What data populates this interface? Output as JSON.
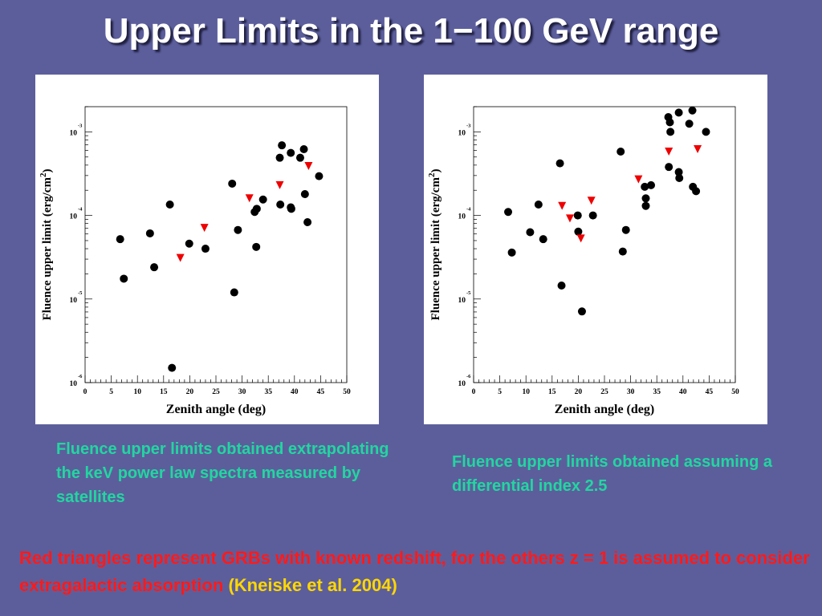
{
  "page": {
    "title": "Upper Limits in the 1−100 GeV range",
    "caption_left": "Fluence upper limits obtained extrapolating the keV power law spectra measured by satellites",
    "caption_right": "Fluence upper limits obtained assuming a differential index 2.5",
    "footnote_main": "Red triangles represent GRBs with known redshift, for the others z = 1 is assumed to consider extragalactic absorption",
    "footnote_ref": "(Kneiske et al. 2004)"
  },
  "colors": {
    "background": "#5c5e9c",
    "caption": "#22d6a0",
    "footnote": "#ff1a1a",
    "reference": "#ffd700",
    "circle_marker": "#000000",
    "triangle_marker": "#ee0000"
  },
  "chart_data": [
    {
      "type": "scatter",
      "xlabel": "Zenith angle (deg)",
      "ylabel": "Fluence upper limit (erg/cm^2)",
      "xlim": [
        0,
        50
      ],
      "ylim": [
        1e-06,
        0.002
      ],
      "yscale": "log",
      "xticks": [
        0,
        5,
        10,
        15,
        20,
        25,
        30,
        35,
        40,
        45,
        50
      ],
      "yticks": [
        {
          "value": 0.001,
          "base": "10",
          "exp": "-3"
        },
        {
          "value": 0.0001,
          "base": "10",
          "exp": "-4"
        },
        {
          "value": 1e-05,
          "base": "10",
          "exp": "-5"
        },
        {
          "value": 1e-06,
          "base": "10",
          "exp": "-6"
        }
      ],
      "series": [
        {
          "marker": "circle",
          "points": [
            {
              "x": 6.7,
              "y": 5.2e-05
            },
            {
              "x": 7.4,
              "y": 1.75e-05
            },
            {
              "x": 12.4,
              "y": 6.1e-05
            },
            {
              "x": 13.2,
              "y": 2.4e-05
            },
            {
              "x": 16.2,
              "y": 0.000135
            },
            {
              "x": 16.6,
              "y": 1.5e-06
            },
            {
              "x": 19.9,
              "y": 4.6e-05
            },
            {
              "x": 23.0,
              "y": 4e-05
            },
            {
              "x": 28.1,
              "y": 0.00024
            },
            {
              "x": 28.5,
              "y": 1.2e-05
            },
            {
              "x": 29.2,
              "y": 6.7e-05
            },
            {
              "x": 32.4,
              "y": 0.00011
            },
            {
              "x": 32.7,
              "y": 4.2e-05
            },
            {
              "x": 32.8,
              "y": 0.00012
            },
            {
              "x": 34.0,
              "y": 0.000155
            },
            {
              "x": 37.2,
              "y": 0.00049
            },
            {
              "x": 37.6,
              "y": 0.00069
            },
            {
              "x": 37.3,
              "y": 0.000135
            },
            {
              "x": 39.3,
              "y": 0.00056
            },
            {
              "x": 39.3,
              "y": 0.000125
            },
            {
              "x": 39.4,
              "y": 0.00012
            },
            {
              "x": 41.1,
              "y": 0.00049
            },
            {
              "x": 41.8,
              "y": 0.00062
            },
            {
              "x": 42.0,
              "y": 0.00018
            },
            {
              "x": 42.5,
              "y": 8.3e-05
            },
            {
              "x": 44.7,
              "y": 0.000295
            }
          ]
        },
        {
          "marker": "triangle",
          "points": [
            {
              "x": 18.2,
              "y": 3.1e-05
            },
            {
              "x": 22.8,
              "y": 7.1e-05
            },
            {
              "x": 31.4,
              "y": 0.00016
            },
            {
              "x": 37.2,
              "y": 0.00023
            },
            {
              "x": 42.7,
              "y": 0.00039
            }
          ]
        }
      ]
    },
    {
      "type": "scatter",
      "xlabel": "Zenith angle (deg)",
      "ylabel": "Fluence upper limit (erg/cm^2)",
      "xlim": [
        0,
        50
      ],
      "ylim": [
        1e-06,
        0.002
      ],
      "yscale": "log",
      "xticks": [
        0,
        5,
        10,
        15,
        20,
        25,
        30,
        35,
        40,
        45,
        50
      ],
      "yticks": [
        {
          "value": 0.001,
          "base": "10",
          "exp": "-3"
        },
        {
          "value": 0.0001,
          "base": "10",
          "exp": "-4"
        },
        {
          "value": 1e-05,
          "base": "10",
          "exp": "-5"
        },
        {
          "value": 1e-06,
          "base": "10",
          "exp": "-6"
        }
      ],
      "series": [
        {
          "marker": "circle",
          "points": [
            {
              "x": 6.6,
              "y": 0.00011
            },
            {
              "x": 7.3,
              "y": 3.6e-05
            },
            {
              "x": 10.8,
              "y": 6.3e-05
            },
            {
              "x": 12.4,
              "y": 0.000135
            },
            {
              "x": 13.3,
              "y": 5.2e-05
            },
            {
              "x": 16.5,
              "y": 0.00042
            },
            {
              "x": 16.8,
              "y": 1.45e-05
            },
            {
              "x": 19.9,
              "y": 0.0001
            },
            {
              "x": 20.0,
              "y": 6.4e-05
            },
            {
              "x": 20.7,
              "y": 7.1e-06
            },
            {
              "x": 22.8,
              "y": 0.0001
            },
            {
              "x": 28.1,
              "y": 0.00058
            },
            {
              "x": 28.5,
              "y": 3.7e-05
            },
            {
              "x": 29.1,
              "y": 6.7e-05
            },
            {
              "x": 32.7,
              "y": 0.00022
            },
            {
              "x": 32.9,
              "y": 0.00016
            },
            {
              "x": 32.9,
              "y": 0.00013
            },
            {
              "x": 33.9,
              "y": 0.00023
            },
            {
              "x": 37.2,
              "y": 0.0015
            },
            {
              "x": 37.3,
              "y": 0.00038
            },
            {
              "x": 37.5,
              "y": 0.0013
            },
            {
              "x": 37.6,
              "y": 0.001
            },
            {
              "x": 39.2,
              "y": 0.0017
            },
            {
              "x": 39.2,
              "y": 0.00033
            },
            {
              "x": 39.3,
              "y": 0.00028
            },
            {
              "x": 41.2,
              "y": 0.00125
            },
            {
              "x": 41.8,
              "y": 0.0018
            },
            {
              "x": 41.9,
              "y": 0.00022
            },
            {
              "x": 42.5,
              "y": 0.000195
            },
            {
              "x": 44.4,
              "y": 0.001
            }
          ]
        },
        {
          "marker": "triangle",
          "points": [
            {
              "x": 16.9,
              "y": 0.00013
            },
            {
              "x": 18.4,
              "y": 9.2e-05
            },
            {
              "x": 20.5,
              "y": 5.3e-05
            },
            {
              "x": 22.5,
              "y": 0.00015
            },
            {
              "x": 31.5,
              "y": 0.00027
            },
            {
              "x": 37.3,
              "y": 0.00058
            },
            {
              "x": 42.8,
              "y": 0.00062
            }
          ]
        }
      ]
    }
  ]
}
